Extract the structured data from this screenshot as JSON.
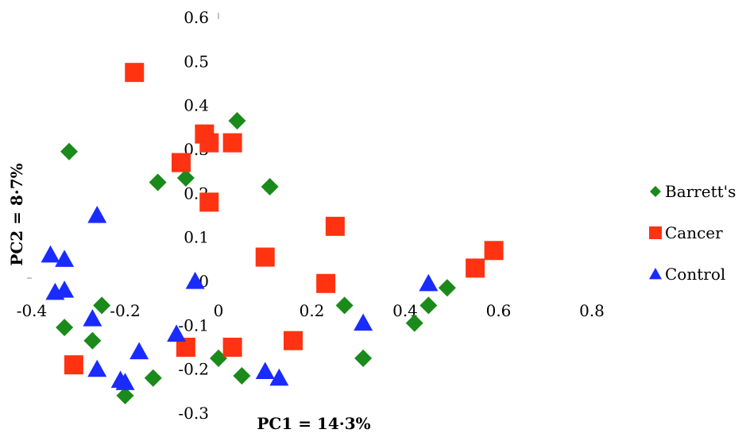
{
  "chart_data": {
    "type": "scatter",
    "title": "",
    "xlabel": "PC1 = 14·3%",
    "ylabel": "PC2 = 8·7%",
    "xlim": [
      -0.4,
      0.8
    ],
    "ylim": [
      -0.3,
      0.6
    ],
    "x_ticks": [
      "-0.4",
      "-0.2",
      "0",
      "0.2",
      "0.4",
      "0.6",
      "0.8"
    ],
    "y_ticks": [
      "0.6",
      "0.5",
      "0.4",
      "0.3",
      "0.2",
      "0.1",
      "0",
      "-0.1",
      "-0.2",
      "-0.3"
    ],
    "grid": false,
    "legend_position": "right",
    "series": [
      {
        "name": "Barrett's",
        "marker": "diamond",
        "color": "#1a8a1a",
        "x": [
          -0.32,
          -0.13,
          -0.07,
          0.04,
          0.11,
          -0.33,
          -0.25,
          -0.27,
          0.27,
          0.42,
          0.45,
          0.49,
          0.31,
          0.0,
          0.05,
          -0.14,
          -0.2
        ],
        "y": [
          0.295,
          0.225,
          0.235,
          0.365,
          0.215,
          -0.105,
          -0.055,
          -0.135,
          -0.055,
          -0.095,
          -0.055,
          -0.015,
          -0.175,
          -0.175,
          -0.215,
          -0.22,
          -0.26
        ]
      },
      {
        "name": "Cancer",
        "marker": "square",
        "color": "#ff3311",
        "x": [
          -0.18,
          -0.03,
          -0.08,
          -0.02,
          0.03,
          -0.02,
          0.1,
          0.25,
          0.23,
          0.55,
          0.59,
          -0.31,
          -0.07,
          0.03,
          0.16
        ],
        "y": [
          0.475,
          0.335,
          0.27,
          0.315,
          0.315,
          0.18,
          0.055,
          0.125,
          -0.005,
          0.03,
          0.07,
          -0.19,
          -0.15,
          -0.15,
          -0.135
        ]
      },
      {
        "name": "Control",
        "marker": "triangle",
        "color": "#1a2bff",
        "x": [
          -0.26,
          -0.36,
          -0.33,
          -0.05,
          -0.33,
          -0.35,
          -0.27,
          -0.17,
          -0.26,
          -0.21,
          -0.2,
          -0.09,
          0.1,
          0.13,
          0.31,
          0.45
        ],
        "y": [
          0.15,
          0.06,
          0.05,
          0.0,
          -0.02,
          -0.025,
          -0.085,
          -0.16,
          -0.2,
          -0.225,
          -0.23,
          -0.12,
          -0.205,
          -0.22,
          -0.095,
          -0.005
        ]
      }
    ]
  }
}
